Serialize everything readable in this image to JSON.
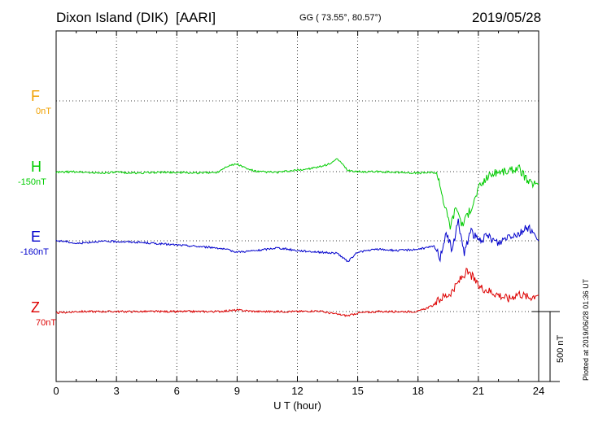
{
  "header": {
    "station": "Dixon Island (DIK)",
    "network": "[AARI]",
    "coords": "GG ( 73.55°,  80.57°)",
    "date": "2019/05/28"
  },
  "components": [
    {
      "letter": "F",
      "base": "0nT",
      "color": "#f0a000"
    },
    {
      "letter": "H",
      "base": "-150nT",
      "color": "#00cc00"
    },
    {
      "letter": "E",
      "base": "-160nT",
      "color": "#0000cc"
    },
    {
      "letter": "Z",
      "base": "70nT",
      "color": "#dd0000"
    }
  ],
  "scale_label": "500 nT",
  "footer_note": "Plotted at 2019/06/28 01:36 UT",
  "chart_data": {
    "type": "line",
    "xlabel": "U T (hour)",
    "xlim": [
      0,
      24
    ],
    "xticks": [
      "0",
      "3",
      "6",
      "9",
      "12",
      "15",
      "18",
      "21",
      "24"
    ],
    "grid": "dotted",
    "series": [
      {
        "name": "H",
        "color": "#00cc00",
        "x": [
          0,
          1,
          2,
          3,
          4,
          5,
          6,
          7,
          8,
          8.5,
          9,
          9.5,
          10,
          11,
          12,
          13,
          13.5,
          14,
          14.5,
          15,
          16,
          17,
          18,
          18.8,
          19,
          19.3,
          19.6,
          19.9,
          20.2,
          20.5,
          20.8,
          21,
          21.5,
          22,
          22.5,
          23,
          23.5,
          24
        ],
        "y": [
          -5,
          0,
          -10,
          -5,
          -10,
          -5,
          -5,
          -10,
          -5,
          40,
          55,
          20,
          0,
          -5,
          10,
          30,
          50,
          90,
          10,
          0,
          0,
          -5,
          -10,
          -5,
          -30,
          -230,
          -390,
          -250,
          -380,
          -300,
          -210,
          -120,
          -30,
          0,
          0,
          30,
          -80,
          -90
        ]
      },
      {
        "name": "E",
        "color": "#0000cc",
        "x": [
          0,
          0.5,
          1,
          2,
          3,
          4,
          5,
          6,
          7,
          8,
          9,
          10,
          11,
          12,
          13,
          14,
          14.5,
          15,
          16,
          17,
          18,
          18.8,
          19.1,
          19.4,
          19.7,
          20,
          20.3,
          20.6,
          21,
          21.5,
          22,
          22.5,
          23,
          23.5,
          24
        ],
        "y": [
          0,
          -5,
          -20,
          -5,
          -5,
          -10,
          -20,
          -30,
          -40,
          -50,
          -80,
          -70,
          -50,
          -70,
          -80,
          -90,
          -150,
          -80,
          -60,
          -70,
          -60,
          -40,
          -120,
          70,
          -80,
          150,
          -100,
          80,
          0,
          30,
          -20,
          40,
          50,
          100,
          0
        ]
      },
      {
        "name": "Z",
        "color": "#dd0000",
        "x": [
          0,
          1,
          2,
          3,
          4,
          5,
          6,
          7,
          8,
          9,
          10,
          11,
          12,
          13,
          14,
          14.5,
          15,
          16,
          17,
          18,
          18.7,
          19.2,
          19.5,
          19.8,
          20.1,
          20.4,
          20.7,
          21,
          21.5,
          22,
          22.5,
          23,
          23.5,
          24
        ],
        "y": [
          -10,
          0,
          0,
          0,
          0,
          0,
          0,
          0,
          0,
          10,
          0,
          0,
          0,
          5,
          -20,
          -30,
          -10,
          0,
          0,
          0,
          40,
          100,
          120,
          160,
          230,
          280,
          250,
          180,
          150,
          120,
          90,
          130,
          100,
          120
        ]
      }
    ]
  }
}
